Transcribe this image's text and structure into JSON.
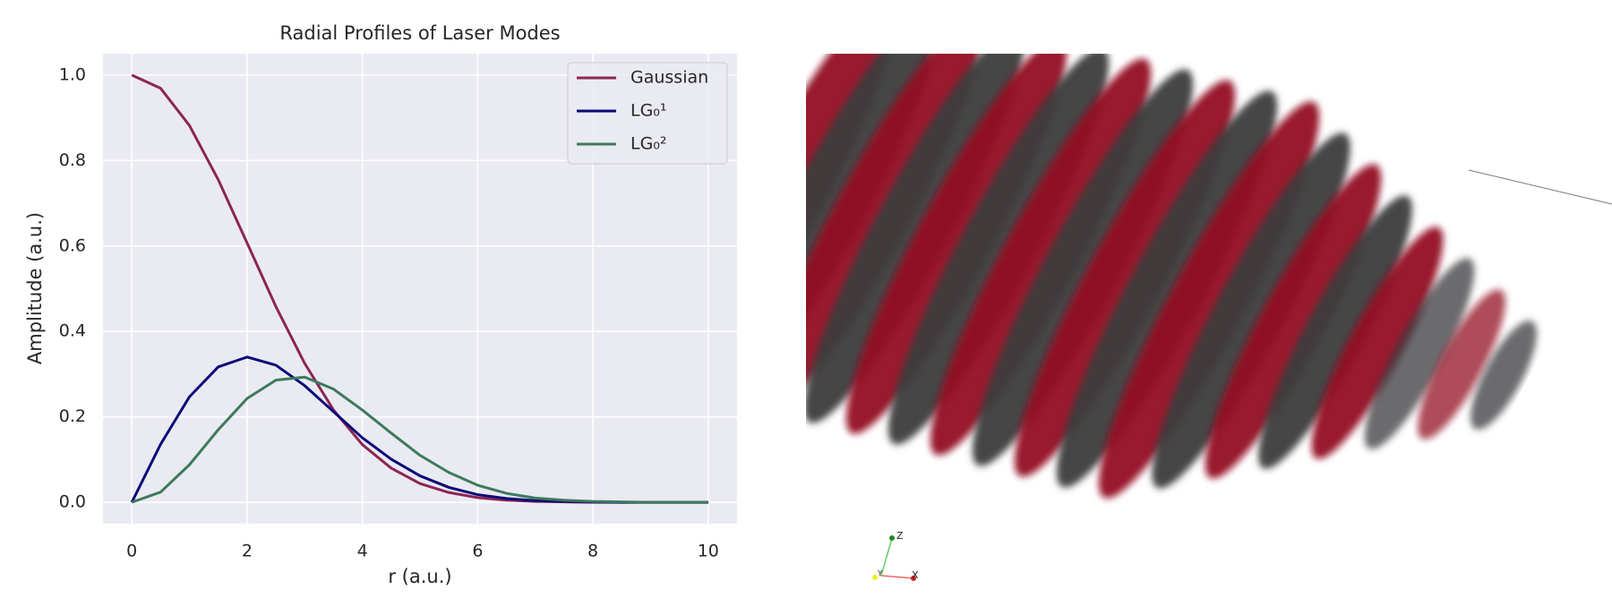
{
  "chart_data": {
    "type": "line",
    "title": "Radial Profiles of Laser Modes",
    "xlabel": "r (a.u.)",
    "ylabel": "Amplitude (a.u.)",
    "x": [
      0,
      0.5,
      1,
      1.5,
      2,
      2.5,
      3,
      3.5,
      4,
      4.5,
      5,
      5.5,
      6,
      6.5,
      7,
      7.5,
      8,
      8.5,
      9,
      9.5,
      10
    ],
    "series": [
      {
        "name": "Gaussian",
        "color": "#8c2553",
        "values": [
          1,
          0.969,
          0.882,
          0.755,
          0.607,
          0.458,
          0.325,
          0.216,
          0.135,
          0.08,
          0.044,
          0.023,
          0.011,
          0.005,
          0.002,
          0.001,
          0,
          0,
          0,
          0,
          0
        ]
      },
      {
        "name": "LG₀¹",
        "color": "#0a0a78",
        "values": [
          0,
          0.136,
          0.247,
          0.317,
          0.34,
          0.321,
          0.273,
          0.212,
          0.151,
          0.101,
          0.062,
          0.035,
          0.018,
          0.009,
          0.004,
          0.002,
          0.001,
          0,
          0,
          0,
          0
        ]
      },
      {
        "name": "LG₀²",
        "color": "#3d7a5c",
        "values": [
          0,
          0.024,
          0.088,
          0.17,
          0.243,
          0.286,
          0.293,
          0.265,
          0.216,
          0.162,
          0.11,
          0.07,
          0.04,
          0.021,
          0.01,
          0.005,
          0.002,
          0.001,
          0,
          0,
          0
        ]
      }
    ],
    "xlim": [
      -0.5,
      10.5
    ],
    "ylim": [
      -0.05,
      1.05
    ],
    "xticks": [
      0,
      2,
      4,
      6,
      8,
      10
    ],
    "yticks": [
      {
        "value": 0,
        "label": "0.0"
      },
      0.2,
      0.4,
      0.6,
      0.8,
      {
        "value": 1,
        "label": "1.0"
      }
    ],
    "grid": true,
    "legend": "upper right"
  },
  "scene_axes": [
    "Z",
    "Y",
    "X"
  ]
}
